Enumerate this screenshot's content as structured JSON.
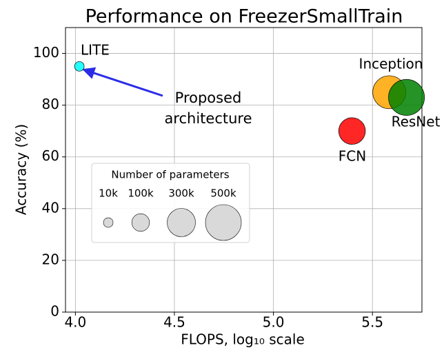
{
  "chart_data": {
    "type": "scatter",
    "title": "Performance on FreezerSmallTrain",
    "xlabel": "FLOPS, log₁₀ scale",
    "ylabel": "Accuracy (%)",
    "xlim": [
      3.95,
      5.75
    ],
    "xticks": [
      {
        "value": 4,
        "label": "4.0"
      },
      4.5,
      {
        "value": 5,
        "label": "5.0"
      },
      5.5
    ],
    "ylim": [
      0,
      110
    ],
    "yticks": [
      0,
      20,
      40,
      60,
      80,
      100
    ],
    "grid": true,
    "series": [
      {
        "name": "LITE",
        "color": "#00ffff",
        "x": [
          4.02
        ],
        "values": [
          95
        ],
        "sizes": [
          10
        ]
      },
      {
        "name": "Inception",
        "color": "#ffa500",
        "x": [
          5.585
        ],
        "values": [
          85
        ],
        "sizes": [
          420
        ]
      },
      {
        "name": "ResNet",
        "color": "#008000",
        "x": [
          5.672
        ],
        "values": [
          83
        ],
        "sizes": [
          504
        ]
      },
      {
        "name": "FCN",
        "color": "#ff0000",
        "x": [
          5.397
        ],
        "values": [
          70
        ],
        "sizes": [
          265
        ]
      }
    ],
    "annotation": {
      "text": [
        "Proposed",
        "architecture"
      ],
      "color": "#4a3cf0"
    },
    "legend": {
      "title": "Number of parameters",
      "sizes": [
        {
          "value": 10,
          "label": "10k"
        },
        {
          "value": 100,
          "label": "100k"
        },
        {
          "value": 300,
          "label": "300k"
        },
        {
          "value": 500,
          "label": "500k"
        }
      ]
    }
  }
}
